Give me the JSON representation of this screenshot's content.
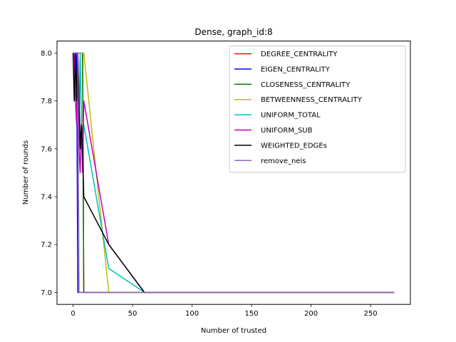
{
  "chart_data": {
    "type": "line",
    "title": "Dense, graph_id:8",
    "xlabel": "Number of trusted",
    "ylabel": "Number of rounds",
    "xlim": [
      -13.5,
      283.5
    ],
    "ylim": [
      6.95,
      8.05
    ],
    "xticks": [
      0,
      50,
      100,
      150,
      200,
      250
    ],
    "yticks": [
      7.0,
      7.2,
      7.4,
      7.6,
      7.8,
      8.0
    ],
    "ytick_labels": [
      "7.0",
      "7.2",
      "7.4",
      "7.6",
      "7.8",
      "8.0"
    ],
    "grid": false,
    "legend_position": "top-right",
    "series": [
      {
        "name": "DEGREE_CENTRALITY",
        "color": "#ff0000",
        "x": [
          0,
          1,
          2,
          3,
          4,
          5,
          6,
          7,
          8,
          9,
          30,
          60,
          270
        ],
        "y": [
          8,
          8,
          8,
          8,
          8,
          8,
          8,
          8,
          8,
          7,
          7,
          7,
          7
        ]
      },
      {
        "name": "EIGEN_CENTRALITY",
        "color": "#0000ff",
        "x": [
          0,
          1,
          2,
          3,
          4,
          5,
          6,
          7,
          8,
          9,
          30,
          60,
          270
        ],
        "y": [
          8,
          8,
          8,
          8,
          7,
          7,
          7,
          7,
          7,
          7,
          7,
          7,
          7
        ]
      },
      {
        "name": "CLOSENESS_CENTRALITY",
        "color": "#008000",
        "x": [
          0,
          1,
          2,
          3,
          4,
          5,
          6,
          7,
          8,
          9,
          30,
          60,
          270
        ],
        "y": [
          8,
          8,
          8,
          8,
          8,
          8,
          8,
          8,
          8,
          7,
          7,
          7,
          7
        ]
      },
      {
        "name": "BETWEENNESS_CENTRALITY",
        "color": "#bfbf00",
        "x": [
          0,
          1,
          2,
          3,
          4,
          5,
          6,
          7,
          8,
          9,
          30,
          60,
          270
        ],
        "y": [
          8,
          8,
          8,
          8,
          8,
          8,
          8,
          8,
          8,
          8,
          7,
          7,
          7
        ]
      },
      {
        "name": "UNIFORM_TOTAL",
        "color": "#00bfbf",
        "x": [
          0,
          1,
          2,
          3,
          4,
          5,
          6,
          7,
          8,
          9,
          30,
          60,
          270
        ],
        "y": [
          8,
          8,
          8,
          8,
          8,
          7.7,
          8,
          7.7,
          7.6,
          7.7,
          7.1,
          7,
          7
        ]
      },
      {
        "name": "UNIFORM_SUB",
        "color": "#bf00bf",
        "x": [
          0,
          1,
          2,
          3,
          4,
          5,
          6,
          7,
          8,
          9,
          30,
          60,
          270
        ],
        "y": [
          8,
          8,
          7.8,
          7.7,
          8,
          7.6,
          7.5,
          7.7,
          7.5,
          7.8,
          7.2,
          7,
          7
        ]
      },
      {
        "name": "WEIGHTED_EDGEs",
        "color": "#000000",
        "x": [
          0,
          1,
          2,
          3,
          4,
          5,
          6,
          7,
          8,
          9,
          30,
          60,
          270
        ],
        "y": [
          8,
          7.8,
          8,
          7.8,
          8,
          7.8,
          7.6,
          7.7,
          7.6,
          7.4,
          7.2,
          7,
          7
        ]
      },
      {
        "name": "remove_neis",
        "color": "#9467bd",
        "x": [
          0,
          1,
          2,
          3,
          4,
          5,
          6,
          7,
          8,
          9,
          30,
          60,
          270
        ],
        "y": [
          8,
          8,
          8,
          8,
          8,
          7,
          7,
          7,
          7,
          7,
          7,
          7,
          7
        ]
      }
    ]
  }
}
